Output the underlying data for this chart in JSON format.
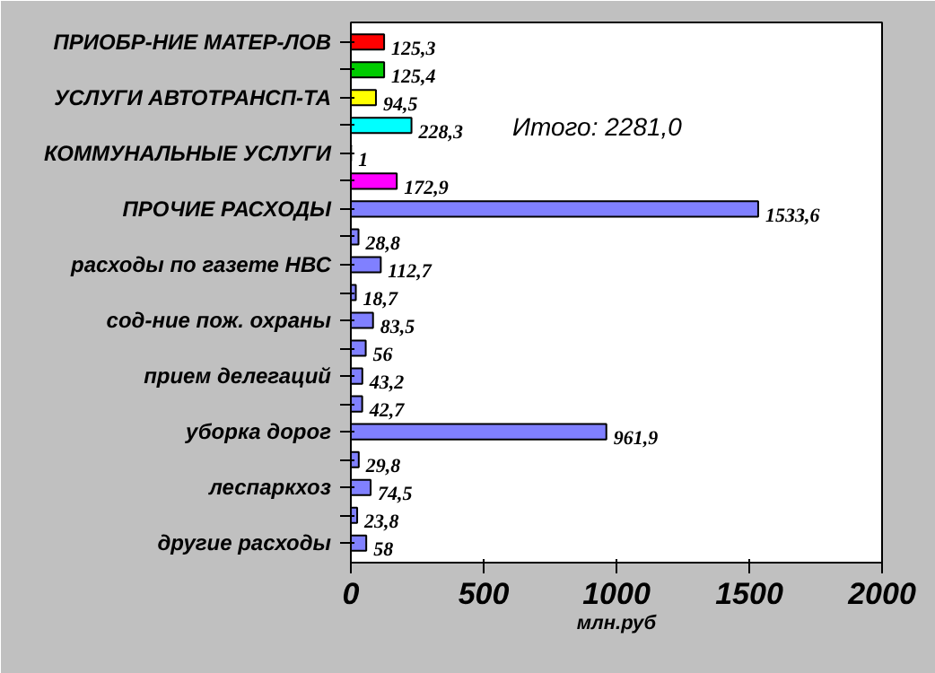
{
  "chart_data": {
    "type": "bar",
    "orientation": "horizontal",
    "xlabel": "млн.руб",
    "categories": [
      "ПРИОБР-НИЕ МАТЕР-ЛОВ",
      null,
      "УСЛУГИ АВТОТРАНСП-ТА",
      null,
      "КОММУНАЛЬНЫЕ УСЛУГИ",
      null,
      "ПРОЧИЕ РАСХОДЫ",
      null,
      "расходы по газете НВС",
      null,
      "сод-ние пож. охраны",
      null,
      "прием делегаций",
      null,
      "уборка дорог",
      null,
      "леспаркхоз",
      null,
      "другие расходы"
    ],
    "values": [
      125.3,
      125.4,
      94.5,
      228.3,
      1,
      172.9,
      1533.6,
      28.8,
      112.7,
      18.7,
      83.5,
      56,
      43.2,
      42.7,
      961.9,
      29.8,
      74.5,
      23.8,
      58
    ],
    "value_labels": [
      "125,3",
      "125,4",
      "94,5",
      "228,3",
      "1",
      "172,9",
      "1533,6",
      "28,8",
      "112,7",
      "18,7",
      "83,5",
      "56",
      "43,2",
      "42,7",
      "961,9",
      "29,8",
      "74,5",
      "23,8",
      "58"
    ],
    "colors": [
      "#ff0000",
      "#00cc00",
      "#ffff00",
      "#00ffff",
      "#333399",
      "#ff00ff",
      "#8080ff",
      "#8080ff",
      "#8080ff",
      "#8080ff",
      "#8080ff",
      "#8080ff",
      "#8080ff",
      "#8080ff",
      "#8080ff",
      "#8080ff",
      "#8080ff",
      "#8080ff",
      "#8080ff"
    ],
    "xlim": [
      0,
      2000
    ],
    "xticks": [
      0,
      500,
      1000,
      1500,
      2000
    ],
    "annotations": [
      "Итого:  2281,0"
    ],
    "grid": false
  }
}
